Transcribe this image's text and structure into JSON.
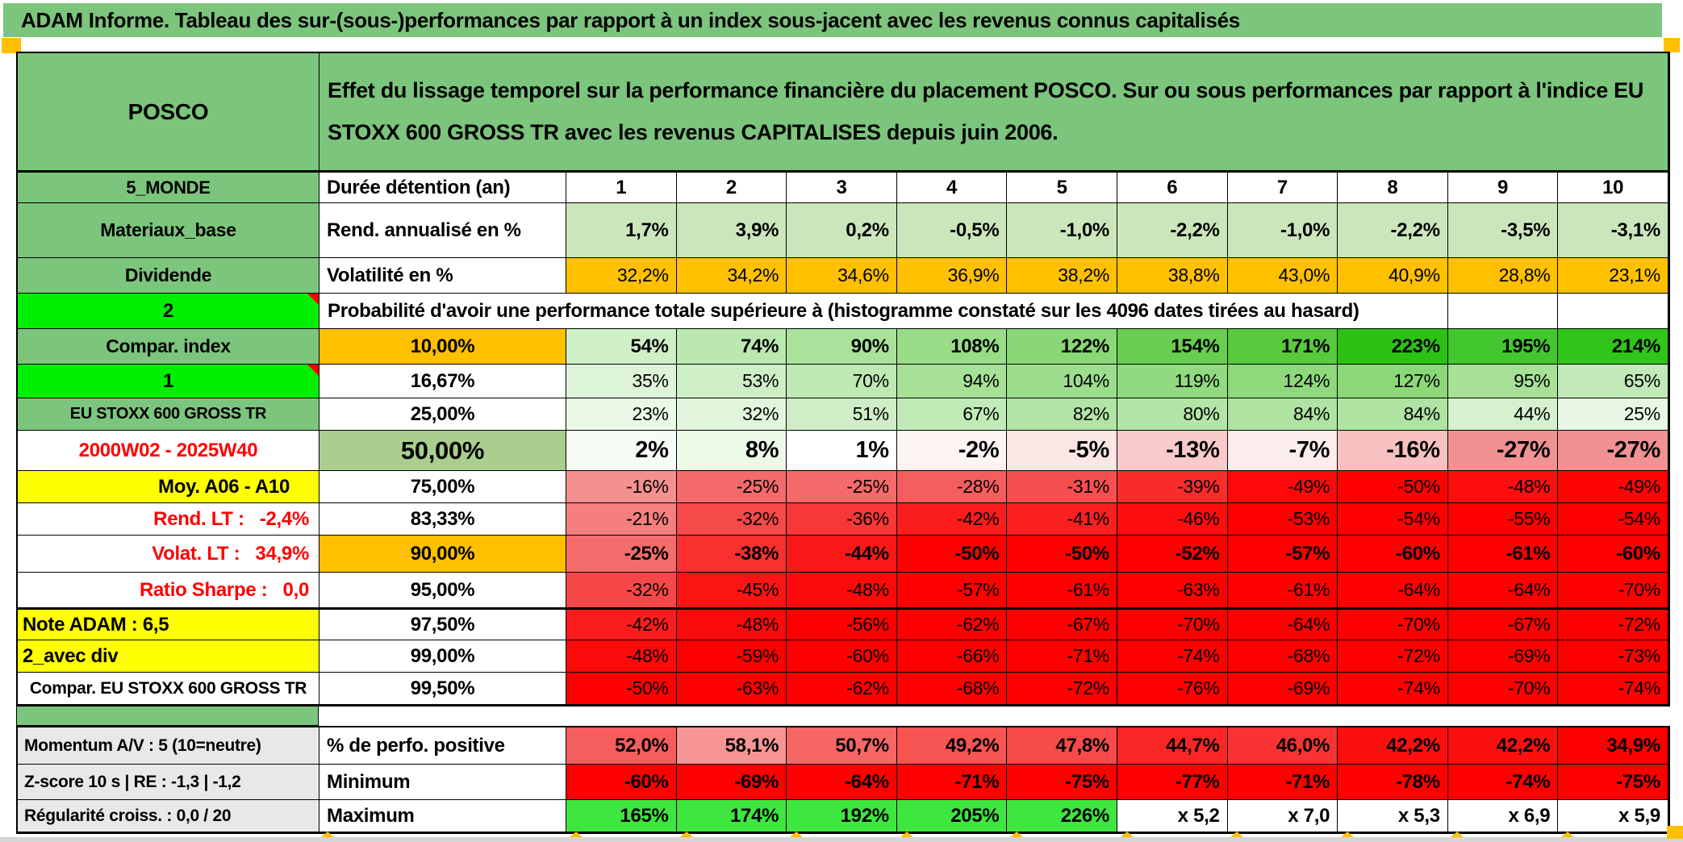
{
  "title": "ADAM Informe. Tableau des sur-(sous-)performances par rapport à un index sous-jacent avec les revenus connus capitalisés",
  "header": {
    "ticker": "POSCO",
    "description": "Effet du lissage temporel sur la performance financière du placement POSCO. Sur ou sous performances par rapport à l'indice EU STOXX 600 GROSS TR avec les revenus CAPITALISES depuis juin 2006."
  },
  "colors": {
    "header_green": "#7CC57C",
    "bright_green": "#00EF00",
    "accent_orange": "#FFC000",
    "accent_yellow": "#FFFF00",
    "full_red": "#FF0000",
    "max_green": "#3FE63F",
    "band_green": "#A9CE8E",
    "gray_label": "#E9E7E7"
  },
  "rows": [
    {
      "id": "duree",
      "label": "5_MONDE",
      "ls": "lab-green sz22",
      "metric": "Durée détention (an)",
      "ms": "met-left",
      "vs": "val-c",
      "thickTop": true,
      "v": [
        "1",
        "2",
        "3",
        "4",
        "5",
        "6",
        "7",
        "8",
        "9",
        "10"
      ],
      "bg": [
        "#FFFFFF",
        "#FFFFFF",
        "#FFFFFF",
        "#FFFFFF",
        "#FFFFFF",
        "#FFFFFF",
        "#FFFFFF",
        "#FFFFFF",
        "#FFFFFF",
        "#FFFFFF"
      ]
    },
    {
      "id": "rend",
      "label": "Materiaux_base",
      "ls": "lab-green",
      "metric": "Rend. annualisé en %",
      "ms": "met-left",
      "vs": "val-b",
      "v": [
        "1,7%",
        "3,9%",
        "0,2%",
        "-0,5%",
        "-1,0%",
        "-2,2%",
        "-1,0%",
        "-2,2%",
        "-3,5%",
        "-3,1%"
      ],
      "bg": [
        "#CCE6BC",
        "#CCE6BC",
        "#CCE6BC",
        "#CCE6BC",
        "#CCE6BC",
        "#CCE6BC",
        "#CCE6BC",
        "#CCE6BC",
        "#CCE6BC",
        "#CCE6BC"
      ]
    },
    {
      "id": "vol",
      "label": "Dividende",
      "ls": "lab-green",
      "metric": "Volatilité en %",
      "ms": "met-left",
      "vs": "val",
      "v": [
        "32,2%",
        "34,2%",
        "34,6%",
        "36,9%",
        "38,2%",
        "38,8%",
        "43,0%",
        "40,9%",
        "28,8%",
        "23,1%"
      ],
      "bg": [
        "#FFC000",
        "#FFC000",
        "#FFC000",
        "#FFC000",
        "#FFC000",
        "#FFC000",
        "#FFC000",
        "#FFC000",
        "#FFC000",
        "#FFC000"
      ]
    },
    {
      "id": "proba",
      "type": "span",
      "label": "2",
      "ls": "lab-bright",
      "corner": true,
      "text": "Probabilité d'avoir une performance totale supérieure à (histogramme constaté sur les 4096 dates tirées au hasard)"
    },
    {
      "id": "p10",
      "label": "Compar. index",
      "ls": "lab-green",
      "metric": "10,00%",
      "ms": "met-orange",
      "vs": "val-b",
      "v": [
        "54%",
        "74%",
        "90%",
        "108%",
        "122%",
        "154%",
        "171%",
        "223%",
        "195%",
        "214%"
      ],
      "bg": [
        "#CFEFC7",
        "#BBE8B0",
        "#AAE29C",
        "#98DC88",
        "#89D776",
        "#69CE50",
        "#59C93E",
        "#2BC214",
        "#43C72E",
        "#31C41A"
      ]
    },
    {
      "id": "p16",
      "label": "1",
      "ls": "lab-bright",
      "corner": true,
      "metric": "16,67%",
      "ms": "met-center",
      "vs": "val",
      "v": [
        "35%",
        "53%",
        "70%",
        "94%",
        "104%",
        "119%",
        "124%",
        "127%",
        "95%",
        "65%"
      ],
      "bg": [
        "#DEF4D9",
        "#CEEEC6",
        "#BEE9B3",
        "#A7E198",
        "#9DDE8E",
        "#91DA80",
        "#8DD97C",
        "#8BD879",
        "#A6E197",
        "#C2EAB8"
      ]
    },
    {
      "id": "p25",
      "label": "EU STOXX 600 GROSS TR",
      "ls": "lab-green sz19",
      "metric": "25,00%",
      "ms": "met-center",
      "vs": "val",
      "v": [
        "23%",
        "32%",
        "51%",
        "67%",
        "82%",
        "80%",
        "84%",
        "84%",
        "44%",
        "25%"
      ],
      "bg": [
        "#EAF8E6",
        "#E1F5DC",
        "#CFEEC7",
        "#C0EAB6",
        "#B1E4A5",
        "#B3E5A7",
        "#AEE3A2",
        "#AEE3A2",
        "#D5F1CE",
        "#E8F7E4"
      ]
    },
    {
      "id": "p50",
      "label": "2000W02 - 2025W40",
      "ls": "lab-red-center",
      "metric": "50,00%",
      "ms": "met-green50",
      "vs": "val-big",
      "v": [
        "2%",
        "8%",
        "1%",
        "-2%",
        "-5%",
        "-13%",
        "-7%",
        "-16%",
        "-27%",
        "-27%"
      ],
      "bg": [
        "#F8FCF6",
        "#ECF9E7",
        "#FEFFFE",
        "#FDF4F4",
        "#FBE6E6",
        "#F8CACA",
        "#FCEDED",
        "#F7C1C1",
        "#F19292",
        "#F19292"
      ]
    },
    {
      "id": "p75",
      "label": "Moy. A06 - A10",
      "ls": "lab-yellow-right",
      "metric": "75,00%",
      "ms": "met-center",
      "vs": "val",
      "v": [
        "-16%",
        "-25%",
        "-25%",
        "-28%",
        "-31%",
        "-39%",
        "-49%",
        "-50%",
        "-48%",
        "-49%"
      ],
      "bg": [
        "#F49090",
        "#F56A6A",
        "#F56A6A",
        "#F55E5E",
        "#F64F4F",
        "#F92C2C",
        "#FD0909",
        "#FF0000",
        "#FC0E0E",
        "#FE0505"
      ]
    },
    {
      "id": "p83",
      "label": "Rend. LT :   -2,4%",
      "ls": "lab-red-right",
      "metric": "83,33%",
      "ms": "met-center",
      "vs": "val",
      "v": [
        "-21%",
        "-32%",
        "-36%",
        "-42%",
        "-41%",
        "-46%",
        "-53%",
        "-54%",
        "-55%",
        "-54%"
      ],
      "bg": [
        "#F57E7E",
        "#F64949",
        "#F83737",
        "#FB1C1C",
        "#FB2020",
        "#FD0D0D",
        "#FF0000",
        "#FF0000",
        "#FF0000",
        "#FF0000"
      ]
    },
    {
      "id": "p90",
      "label": "Volat. LT :   34,9%",
      "ls": "lab-red-right",
      "metric": "90,00%",
      "ms": "met-orange",
      "vs": "val-b",
      "v": [
        "-25%",
        "-38%",
        "-44%",
        "-50%",
        "-50%",
        "-52%",
        "-57%",
        "-60%",
        "-61%",
        "-60%"
      ],
      "bg": [
        "#F56C6C",
        "#F83030",
        "#FA1818",
        "#FF0000",
        "#FF0000",
        "#FF0000",
        "#FF0000",
        "#FF0000",
        "#FF0000",
        "#FF0000"
      ]
    },
    {
      "id": "p95",
      "label": "Ratio Sharpe :   0,0",
      "ls": "lab-red-right",
      "metric": "95,00%",
      "ms": "met-center",
      "vs": "val",
      "v": [
        "-32%",
        "-45%",
        "-48%",
        "-57%",
        "-61%",
        "-63%",
        "-61%",
        "-64%",
        "-64%",
        "-70%"
      ],
      "bg": [
        "#F64848",
        "#FA1414",
        "#FC0A0A",
        "#FF0000",
        "#FF0000",
        "#FF0000",
        "#FF0000",
        "#FF0000",
        "#FF0000",
        "#FF0000"
      ]
    },
    {
      "id": "p975",
      "label": "Note ADAM : 6,5",
      "ls": "lab-yellow-left",
      "metric": "97,50%",
      "ms": "met-center",
      "vs": "val",
      "thickTop": true,
      "v": [
        "-42%",
        "-48%",
        "-56%",
        "-62%",
        "-67%",
        "-70%",
        "-64%",
        "-70%",
        "-67%",
        "-72%"
      ],
      "bg": [
        "#FB1D1D",
        "#FC0A0A",
        "#FF0000",
        "#FF0000",
        "#FF0000",
        "#FF0000",
        "#FF0000",
        "#FF0000",
        "#FF0000",
        "#FF0000"
      ]
    },
    {
      "id": "p99",
      "label": "2_avec div",
      "ls": "lab-yellow-left",
      "metric": "99,00%",
      "ms": "met-center",
      "vs": "val",
      "v": [
        "-48%",
        "-59%",
        "-60%",
        "-66%",
        "-71%",
        "-74%",
        "-68%",
        "-72%",
        "-69%",
        "-73%"
      ],
      "bg": [
        "#FD0A0A",
        "#FF0000",
        "#FF0000",
        "#FF0000",
        "#FF0000",
        "#FF0000",
        "#FF0000",
        "#FF0000",
        "#FF0000",
        "#FF0000"
      ]
    },
    {
      "id": "p995",
      "label": "Compar. EU STOXX 600 GROSS TR",
      "ls": "lab-white-sm",
      "metric": "99,50%",
      "ms": "met-center",
      "vs": "val",
      "v": [
        "-50%",
        "-63%",
        "-62%",
        "-68%",
        "-72%",
        "-76%",
        "-69%",
        "-74%",
        "-70%",
        "-74%"
      ],
      "bg": [
        "#FF0000",
        "#FF0000",
        "#FF0000",
        "#FF0000",
        "#FF0000",
        "#FF0000",
        "#FF0000",
        "#FF0000",
        "#FF0000",
        "#FF0000"
      ]
    }
  ],
  "footer": {
    "rows": [
      {
        "id": "perfo",
        "label": "Momentum A/V : 5 (10=neutre)",
        "metric": "% de perfo. positive",
        "vs": "val-b",
        "v": [
          "52,0%",
          "58,1%",
          "50,7%",
          "49,2%",
          "47,8%",
          "44,7%",
          "46,0%",
          "42,2%",
          "42,2%",
          "34,9%"
        ],
        "bg": [
          "#F65D5D",
          "#F79494",
          "#F66666",
          "#F75454",
          "#F74A4A",
          "#FA2525",
          "#F93333",
          "#FC0F0F",
          "#FC0F0F",
          "#FF0000"
        ]
      },
      {
        "id": "min",
        "label": "Z-score 10 s | RE : -1,3 | -1,2",
        "metric": "Minimum",
        "vs": "val-b",
        "v": [
          "-60%",
          "-69%",
          "-64%",
          "-71%",
          "-75%",
          "-77%",
          "-71%",
          "-78%",
          "-74%",
          "-75%"
        ],
        "bg": [
          "#FF0000",
          "#FF0000",
          "#FF0000",
          "#FF0000",
          "#FF0000",
          "#FF0000",
          "#FF0000",
          "#FF0000",
          "#FF0000",
          "#FF0000"
        ]
      },
      {
        "id": "max",
        "label": "Régularité croiss. : 0,0 / 20",
        "metric": "Maximum",
        "vs": "val-b",
        "v": [
          "165%",
          "174%",
          "192%",
          "205%",
          "226%",
          "x 5,2",
          "x 7,0",
          "x 5,3",
          "x 6,9",
          "x 5,9"
        ],
        "bg": [
          "#3FE63F",
          "#3FE63F",
          "#3FE63F",
          "#3FE63F",
          "#3FE63F",
          "#FFFFFF",
          "#FFFFFF",
          "#FFFFFF",
          "#FFFFFF",
          "#FFFFFF"
        ]
      }
    ]
  }
}
